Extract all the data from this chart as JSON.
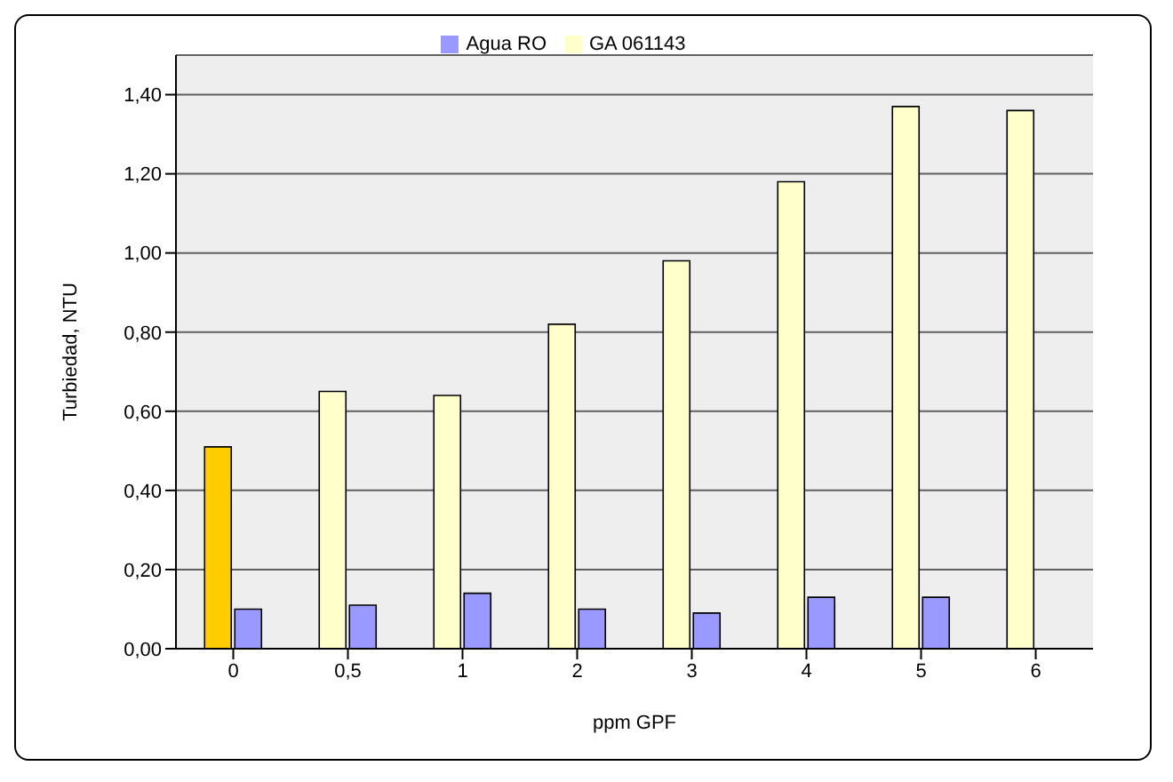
{
  "chart_data": {
    "type": "bar",
    "xlabel": "ppm GPF",
    "ylabel": "Turbiedad, NTU",
    "categories": [
      "0",
      "0,5",
      "1",
      "2",
      "3",
      "4",
      "5",
      "6"
    ],
    "series": [
      {
        "name": "GA 061143",
        "color": "#ffffcc",
        "colors": [
          "#ffcc00",
          "#ffffcc",
          "#ffffcc",
          "#ffffcc",
          "#ffffcc",
          "#ffffcc",
          "#ffffcc",
          "#ffffcc"
        ],
        "values": [
          0.51,
          0.65,
          0.64,
          0.82,
          0.98,
          1.18,
          1.37,
          1.36
        ]
      },
      {
        "name": "Agua RO",
        "color": "#9999ff",
        "values": [
          0.1,
          0.11,
          0.14,
          0.1,
          0.09,
          0.13,
          0.13,
          null
        ]
      }
    ],
    "ylim": [
      0,
      1.5
    ],
    "yticks": [
      {
        "value": 0,
        "label": "0,00"
      },
      {
        "value": 0.2,
        "label": "0,20"
      },
      {
        "value": 0.4,
        "label": "0,40"
      },
      {
        "value": 0.6,
        "label": "0,60"
      },
      {
        "value": 0.8,
        "label": "0,80"
      },
      {
        "value": 1,
        "label": "1,00"
      },
      {
        "value": 1.2,
        "label": "1,20"
      },
      {
        "value": 1.4,
        "label": "1,40"
      }
    ],
    "grid": "y",
    "legend": "top"
  }
}
